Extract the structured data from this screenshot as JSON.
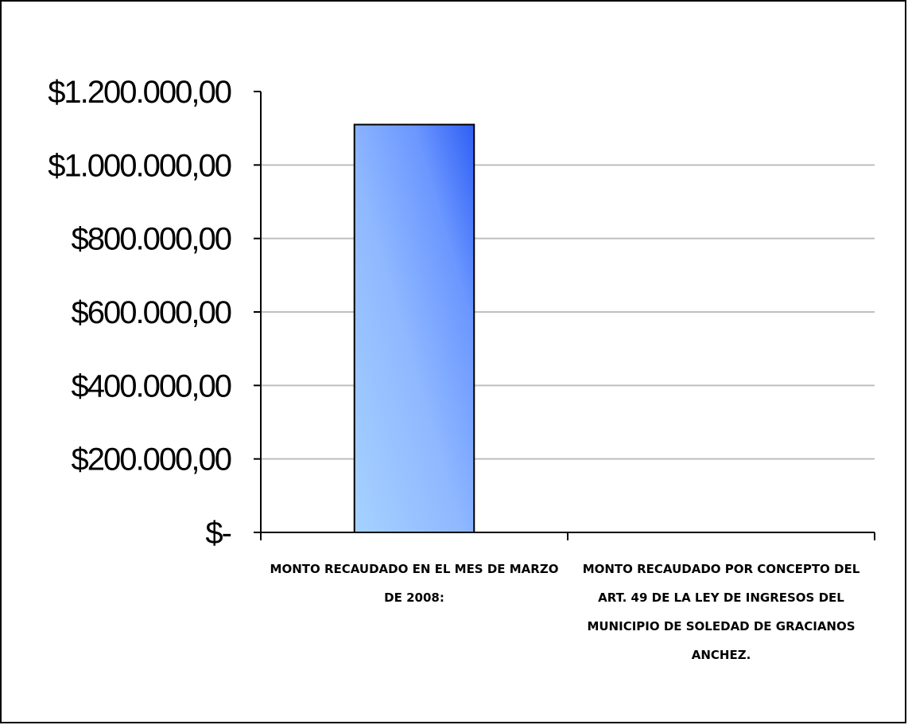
{
  "chart_data": {
    "type": "bar",
    "title": "",
    "xlabel": "",
    "ylabel": "",
    "categories": [
      [
        "MONTO RECAUDADO EN EL MES DE MARZO",
        "DE 2008:"
      ],
      [
        "MONTO RECAUDADO POR CONCEPTO DEL",
        "ART. 49 DE LA LEY DE INGRESOS DEL",
        "MUNICIPIO DE SOLEDAD DE GRACIANOS",
        "ANCHEZ."
      ]
    ],
    "values": [
      1110000,
      0
    ],
    "ylim": [
      0,
      1200000
    ],
    "yticks": [
      0,
      200000,
      400000,
      600000,
      800000,
      1000000,
      1200000
    ],
    "ytick_labels": [
      "$-",
      "$200.000,00",
      "$400.000,00",
      "$600.000,00",
      "$800.000,00",
      "$1.000.000,00",
      "$1.200.000,00"
    ],
    "grid": true,
    "legend": "none",
    "colors": {
      "bar_light": "#9ccbff",
      "bar_dark": "#3366ff",
      "grid": "#bfbfbf",
      "axis": "#000000"
    }
  }
}
